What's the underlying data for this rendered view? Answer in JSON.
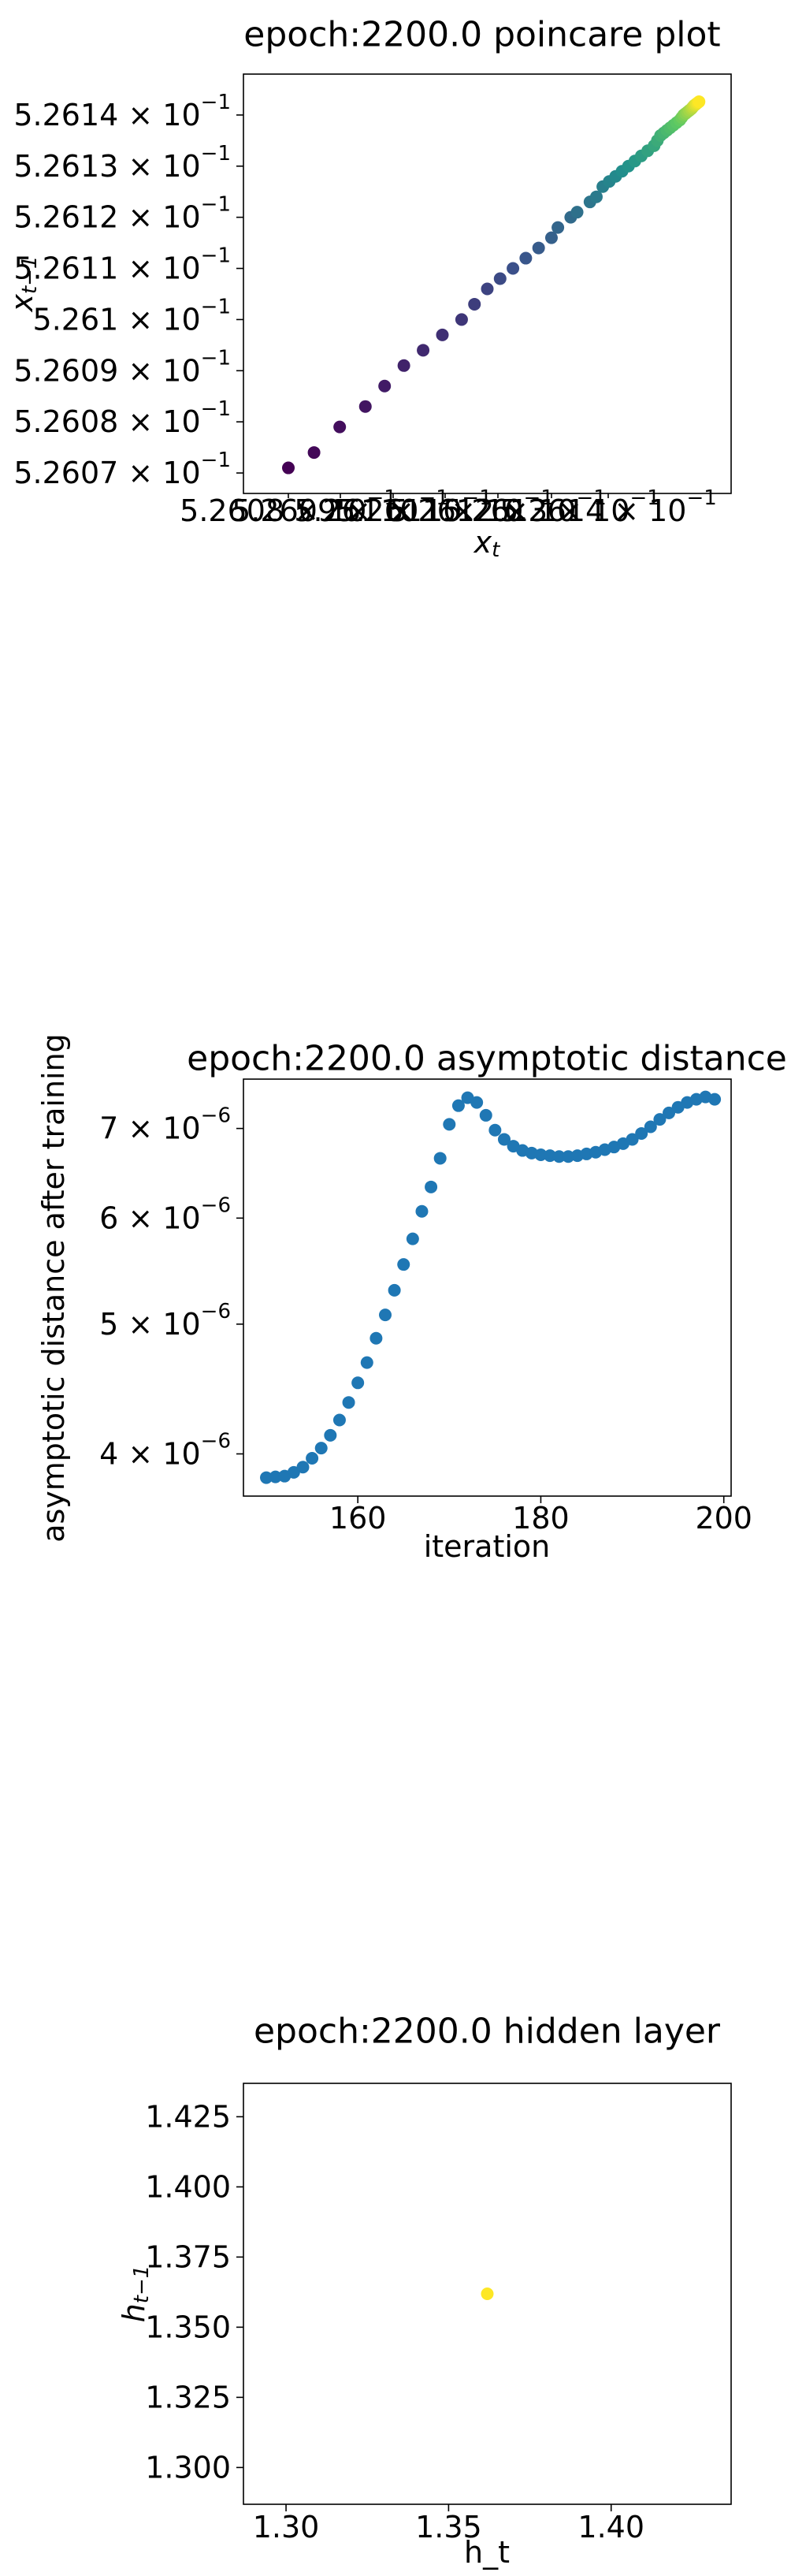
{
  "chart_data": [
    {
      "type": "scatter",
      "title": "epoch:2200.0 poincare plot",
      "xlabel": "x_t",
      "ylabel": "x_{t-1}",
      "xscale": "log",
      "yscale": "log",
      "colormap": "viridis",
      "xticklabels": [
        "5.2608 × 10^-1",
        "5.2609 × 10^-1",
        "5.261 × 10^-1",
        "5.2611 × 10^-1",
        "5.2612 × 10^-1",
        "5.2613 × 10^-1",
        "5.2614 × 10^-1"
      ],
      "yticks": [
        0.52607,
        0.52608,
        0.52609,
        0.5261,
        0.52611,
        0.52612,
        0.52613,
        0.52614
      ],
      "yticklabels": [
        "5.2607 × 10^-1",
        "5.2608 × 10^-1",
        "5.2609 × 10^-1",
        "5.261 × 10^-1",
        "5.2611 × 10^-1",
        "5.2612 × 10^-1",
        "5.2613 × 10^-1",
        "5.2614 × 10^-1"
      ],
      "xlim": [
        0.526072,
        0.526148
      ],
      "ylim": [
        0.526066,
        0.526148
      ],
      "x": [
        0.526079,
        0.526083,
        0.526087,
        0.526091,
        0.526094,
        0.526097,
        0.5261,
        0.526103,
        0.526106,
        0.526108,
        0.52611,
        0.526112,
        0.526114,
        0.526116,
        0.526118,
        0.52612,
        0.526121,
        0.526123,
        0.526124,
        0.526126,
        0.526127,
        0.526128,
        0.526129,
        0.52613,
        0.526131,
        0.526132,
        0.526133,
        0.526134,
        0.526135,
        0.526136,
        0.5261365,
        0.526137,
        0.5261375,
        0.526138,
        0.5261385,
        0.526139,
        0.5261395,
        0.52614,
        0.5261403,
        0.5261406,
        0.5261409,
        0.5261412,
        0.5261415,
        0.5261418,
        0.526142,
        0.5261422,
        0.5261424,
        0.5261426,
        0.5261428,
        0.526143
      ],
      "y": [
        0.526071,
        0.526074,
        0.526079,
        0.526083,
        0.526087,
        0.526091,
        0.526094,
        0.526097,
        0.5261,
        0.526103,
        0.526106,
        0.526108,
        0.52611,
        0.526112,
        0.526114,
        0.526116,
        0.526118,
        0.52612,
        0.526121,
        0.526123,
        0.526124,
        0.526126,
        0.526127,
        0.526128,
        0.526129,
        0.52613,
        0.526131,
        0.526132,
        0.526133,
        0.526134,
        0.526135,
        0.526136,
        0.5261365,
        0.526137,
        0.5261375,
        0.526138,
        0.5261385,
        0.526139,
        0.5261395,
        0.52614,
        0.5261403,
        0.5261406,
        0.5261409,
        0.5261412,
        0.5261415,
        0.5261418,
        0.526142,
        0.5261422,
        0.5261424,
        0.5261426
      ]
    },
    {
      "type": "scatter",
      "title": "epoch:2200.0 asymptotic distance",
      "xlabel": "iteration",
      "ylabel": "asymptotic distance after training",
      "yscale": "log",
      "color": "#1f77b4",
      "xticks": [
        160,
        180,
        200
      ],
      "xticklabels": [
        "160",
        "180",
        "200"
      ],
      "yticks": [
        4e-06,
        5e-06,
        6e-06,
        7e-06
      ],
      "yticklabels": [
        "4 × 10^-6",
        "5 × 10^-6",
        "6 × 10^-6",
        "7 × 10^-6"
      ],
      "xlim": [
        147.5,
        200.8
      ],
      "ylim": [
        3.72e-06,
        7.62e-06
      ],
      "x": [
        150,
        151,
        152,
        153,
        154,
        155,
        156,
        157,
        158,
        159,
        160,
        161,
        162,
        163,
        164,
        165,
        166,
        167,
        168,
        169,
        170,
        171,
        172,
        173,
        174,
        175,
        176,
        177,
        178,
        179,
        180,
        181,
        182,
        183,
        184,
        185,
        186,
        187,
        188,
        189,
        190,
        191,
        192,
        193,
        194,
        195,
        196,
        197,
        198,
        199
      ],
      "y": [
        3.84e-06,
        3.845e-06,
        3.85e-06,
        3.875e-06,
        3.91e-06,
        3.97e-06,
        4.04e-06,
        4.13e-06,
        4.24e-06,
        4.37e-06,
        4.52e-06,
        4.68e-06,
        4.88e-06,
        5.08e-06,
        5.3e-06,
        5.54e-06,
        5.79e-06,
        6.07e-06,
        6.33e-06,
        6.65e-06,
        7.05e-06,
        7.28e-06,
        7.38e-06,
        7.32e-06,
        7.16e-06,
        6.98e-06,
        6.87e-06,
        6.79e-06,
        6.74e-06,
        6.71e-06,
        6.69e-06,
        6.68e-06,
        6.67e-06,
        6.67e-06,
        6.68e-06,
        6.7e-06,
        6.72e-06,
        6.75e-06,
        6.78e-06,
        6.82e-06,
        6.87e-06,
        6.94e-06,
        7.02e-06,
        7.11e-06,
        7.19e-06,
        7.26e-06,
        7.32e-06,
        7.36e-06,
        7.39e-06,
        7.36e-06
      ]
    },
    {
      "type": "scatter",
      "title": "epoch:2200.0 hidden layer",
      "xlabel": "h_t",
      "ylabel": "h_{t-1}",
      "color": "#fde725",
      "xticks": [
        1.3,
        1.35,
        1.4
      ],
      "xticklabels": [
        "1.30",
        "1.35",
        "1.40"
      ],
      "yticks": [
        1.3,
        1.325,
        1.35,
        1.375,
        1.4,
        1.425
      ],
      "yticklabels": [
        "1.300",
        "1.325",
        "1.350",
        "1.375",
        "1.400",
        "1.425"
      ],
      "xlim": [
        1.2869,
        1.4369
      ],
      "ylim": [
        1.2869,
        1.4369
      ],
      "x": [
        1.3619
      ],
      "y": [
        1.3619
      ]
    }
  ]
}
